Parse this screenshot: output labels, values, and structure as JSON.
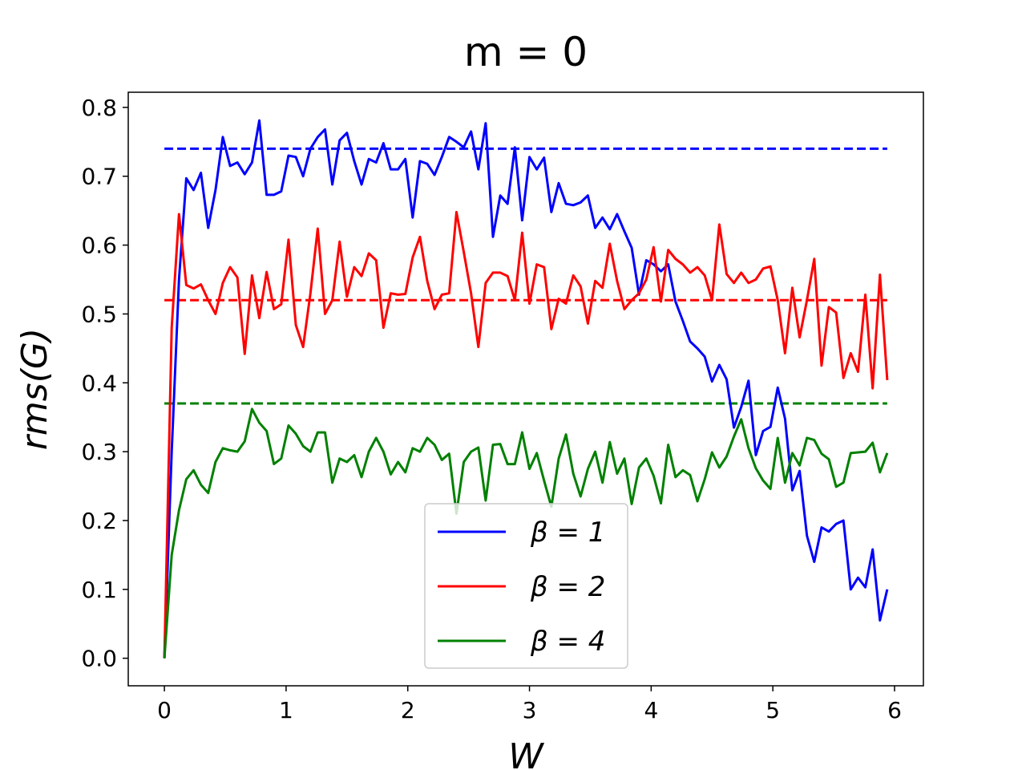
{
  "chart_data": {
    "type": "line",
    "title": "m = 0",
    "xlabel": "W",
    "ylabel": "rms(G)",
    "x": [
      0,
      0.06,
      0.12,
      0.18,
      0.24,
      0.3,
      0.36,
      0.42,
      0.48,
      0.54,
      0.6,
      0.66,
      0.72,
      0.78,
      0.84,
      0.9,
      0.96,
      1.02,
      1.08,
      1.14,
      1.2,
      1.26,
      1.32,
      1.38,
      1.44,
      1.5,
      1.56,
      1.62,
      1.68,
      1.74,
      1.8,
      1.86,
      1.92,
      1.98,
      2.04,
      2.1,
      2.16,
      2.22,
      2.28,
      2.34,
      2.4,
      2.46,
      2.52,
      2.58,
      2.64,
      2.7,
      2.76,
      2.82,
      2.88,
      2.94,
      3,
      3.06,
      3.12,
      3.18,
      3.24,
      3.3,
      3.36,
      3.42,
      3.48,
      3.54,
      3.6,
      3.66,
      3.72,
      3.78,
      3.84,
      3.9,
      3.96,
      4.02,
      4.08,
      4.14,
      4.2,
      4.26,
      4.32,
      4.38,
      4.44,
      4.5,
      4.56,
      4.62,
      4.68,
      4.74,
      4.8,
      4.86,
      4.92,
      4.98,
      5.04,
      5.1,
      5.16,
      5.22,
      5.28,
      5.34,
      5.4,
      5.46,
      5.52,
      5.58,
      5.64,
      5.7,
      5.76,
      5.82,
      5.88,
      5.94
    ],
    "series": [
      {
        "name": "β = 1",
        "color": "#0000ff",
        "values": [
          0,
          0.3,
          0.55,
          0.697,
          0.68,
          0.705,
          0.625,
          0.68,
          0.757,
          0.715,
          0.72,
          0.703,
          0.72,
          0.781,
          0.673,
          0.673,
          0.678,
          0.73,
          0.728,
          0.7,
          0.74,
          0.757,
          0.768,
          0.688,
          0.752,
          0.763,
          0.722,
          0.688,
          0.725,
          0.72,
          0.748,
          0.71,
          0.71,
          0.725,
          0.64,
          0.722,
          0.718,
          0.702,
          0.728,
          0.757,
          0.75,
          0.742,
          0.765,
          0.71,
          0.777,
          0.612,
          0.672,
          0.66,
          0.742,
          0.636,
          0.728,
          0.71,
          0.727,
          0.648,
          0.69,
          0.66,
          0.658,
          0.662,
          0.672,
          0.625,
          0.64,
          0.623,
          0.645,
          0.62,
          0.596,
          0.528,
          0.578,
          0.572,
          0.562,
          0.572,
          0.518,
          0.49,
          0.46,
          0.45,
          0.438,
          0.402,
          0.426,
          0.405,
          0.335,
          0.365,
          0.403,
          0.295,
          0.33,
          0.336,
          0.393,
          0.348,
          0.244,
          0.272,
          0.178,
          0.14,
          0.19,
          0.184,
          0.195,
          0.2,
          0.1,
          0.117,
          0.103,
          0.158,
          0.055,
          0.1
        ]
      },
      {
        "name": "β = 2",
        "color": "#ff0000",
        "values": [
          0,
          0.48,
          0.645,
          0.542,
          0.537,
          0.543,
          0.52,
          0.5,
          0.545,
          0.568,
          0.553,
          0.442,
          0.556,
          0.494,
          0.561,
          0.507,
          0.514,
          0.608,
          0.484,
          0.452,
          0.53,
          0.624,
          0.5,
          0.52,
          0.605,
          0.525,
          0.568,
          0.555,
          0.588,
          0.578,
          0.48,
          0.53,
          0.528,
          0.529,
          0.582,
          0.612,
          0.548,
          0.507,
          0.528,
          0.53,
          0.648,
          0.59,
          0.53,
          0.452,
          0.545,
          0.56,
          0.56,
          0.555,
          0.52,
          0.618,
          0.515,
          0.572,
          0.568,
          0.478,
          0.522,
          0.515,
          0.556,
          0.54,
          0.486,
          0.548,
          0.538,
          0.602,
          0.548,
          0.507,
          0.52,
          0.53,
          0.55,
          0.597,
          0.518,
          0.593,
          0.58,
          0.572,
          0.56,
          0.568,
          0.556,
          0.52,
          0.63,
          0.558,
          0.545,
          0.56,
          0.545,
          0.55,
          0.566,
          0.569,
          0.52,
          0.443,
          0.538,
          0.466,
          0.52,
          0.58,
          0.425,
          0.51,
          0.502,
          0.407,
          0.443,
          0.416,
          0.528,
          0.392,
          0.557,
          0.404
        ]
      },
      {
        "name": "β = 4",
        "color": "#008000",
        "values": [
          0,
          0.15,
          0.215,
          0.26,
          0.273,
          0.252,
          0.24,
          0.285,
          0.305,
          0.302,
          0.3,
          0.315,
          0.362,
          0.342,
          0.33,
          0.282,
          0.29,
          0.338,
          0.326,
          0.308,
          0.3,
          0.328,
          0.328,
          0.255,
          0.29,
          0.285,
          0.295,
          0.263,
          0.3,
          0.32,
          0.3,
          0.267,
          0.285,
          0.27,
          0.305,
          0.3,
          0.32,
          0.31,
          0.288,
          0.297,
          0.21,
          0.285,
          0.3,
          0.306,
          0.229,
          0.31,
          0.311,
          0.282,
          0.282,
          0.328,
          0.275,
          0.298,
          0.258,
          0.22,
          0.29,
          0.325,
          0.268,
          0.235,
          0.275,
          0.3,
          0.255,
          0.314,
          0.268,
          0.29,
          0.224,
          0.277,
          0.29,
          0.265,
          0.225,
          0.31,
          0.263,
          0.273,
          0.266,
          0.228,
          0.26,
          0.299,
          0.277,
          0.293,
          0.322,
          0.347,
          0.305,
          0.276,
          0.258,
          0.246,
          0.32,
          0.255,
          0.298,
          0.28,
          0.32,
          0.317,
          0.297,
          0.289,
          0.249,
          0.255,
          0.298,
          0.299,
          0.3,
          0.313,
          0.27,
          0.298
        ]
      }
    ],
    "reference_lines": [
      {
        "value": 0.74,
        "color": "#0000ff"
      },
      {
        "value": 0.52,
        "color": "#ff0000"
      },
      {
        "value": 0.37,
        "color": "#008000"
      }
    ],
    "xlim": [
      -0.297,
      6.237
    ],
    "ylim": [
      -0.04,
      0.822
    ],
    "xticks": [
      0,
      1,
      2,
      3,
      4,
      5,
      6
    ],
    "yticks": [
      {
        "value": 0,
        "label": "0.0"
      },
      0.1,
      0.2,
      0.3,
      0.4,
      0.5,
      0.6,
      0.7,
      0.8
    ],
    "legend": "lower center"
  }
}
